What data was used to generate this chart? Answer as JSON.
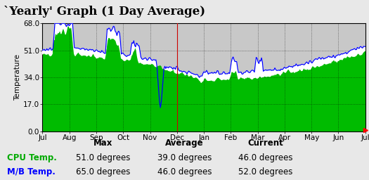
{
  "title": "`Yearly' Graph (1 Day Average)",
  "ylabel": "Temperature",
  "ylim": [
    0.0,
    68.0
  ],
  "yticks": [
    0.0,
    17.0,
    34.0,
    51.0,
    68.0
  ],
  "x_labels": [
    "Jul",
    "Aug",
    "Sep",
    "Oct",
    "Nov",
    "Dec",
    "Jan",
    "Feb",
    "Mar",
    "Apr",
    "May",
    "Jun",
    "Jul"
  ],
  "fig_bg_color": "#e8e8e8",
  "plot_bg_color": "#c8c8c8",
  "green_fill_color": "#00bb00",
  "white_fill_color": "#ffffff",
  "blue_line_color": "#0000ff",
  "red_vline_color": "#cc0000",
  "red_marker_color": "#ff0000",
  "grid_color": "#000000",
  "legend_cpu_color": "#00aa00",
  "legend_mb_color": "#0000ff",
  "legend_header": [
    "",
    "Max",
    "Average",
    "Current"
  ],
  "legend_cpu": [
    "CPU Temp.",
    "51.0 degrees",
    "39.0 degrees",
    "46.0 degrees"
  ],
  "legend_mb": [
    "M/B Temp.",
    "65.0 degrees",
    "46.0 degrees",
    "52.0 degrees"
  ],
  "title_fontsize": 12,
  "axis_fontsize": 7.5,
  "legend_fontsize": 8.5,
  "n_points": 365
}
